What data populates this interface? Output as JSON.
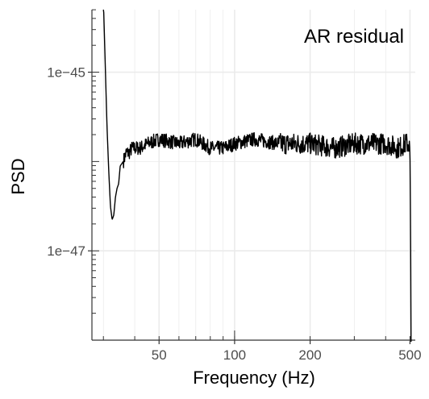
{
  "chart_data": {
    "type": "line",
    "title": "",
    "annotation": "AR residual",
    "xlabel": "Frequency (Hz)",
    "ylabel": "PSD",
    "x_scale": "log",
    "y_scale": "log",
    "xlim": [
      27,
      525
    ],
    "ylim_log10": [
      -48,
      -44.3
    ],
    "x_ticks": [
      {
        "value": 50,
        "label": "50"
      },
      {
        "value": 100,
        "label": "100"
      },
      {
        "value": 200,
        "label": "200"
      },
      {
        "value": 500,
        "label": "500"
      }
    ],
    "y_ticks": [
      {
        "value_log10": -45,
        "label": "1e−45"
      },
      {
        "value_log10": -47,
        "label": "1e−47"
      }
    ],
    "grid": true,
    "series": [
      {
        "name": "",
        "color": "#000000",
        "x": [
          30,
          30.5,
          31,
          31.5,
          32,
          32.5,
          33,
          33.5,
          34,
          34.5,
          35,
          36,
          37,
          38,
          39,
          40,
          42,
          45,
          50,
          60,
          70,
          80,
          90,
          100,
          120,
          150,
          200,
          250,
          300,
          350,
          400,
          450,
          480,
          495,
          500,
          503,
          505
        ],
        "y_log10": [
          -44.2,
          -44.9,
          -45.6,
          -46.1,
          -46.5,
          -46.65,
          -46.6,
          -46.4,
          -46.3,
          -46.25,
          -46.05,
          -46.0,
          -45.9,
          -45.9,
          -45.85,
          -45.85,
          -45.85,
          -45.8,
          -45.75,
          -45.8,
          -45.75,
          -45.85,
          -45.85,
          -45.8,
          -45.75,
          -45.8,
          -45.8,
          -45.85,
          -45.8,
          -45.8,
          -45.8,
          -45.85,
          -45.8,
          -45.8,
          -45.9,
          -46.8,
          -48.2
        ]
      }
    ]
  },
  "colors": {
    "background": "#ffffff",
    "grid": "#ebebeb",
    "axis": "#333333",
    "line": "#000000"
  }
}
